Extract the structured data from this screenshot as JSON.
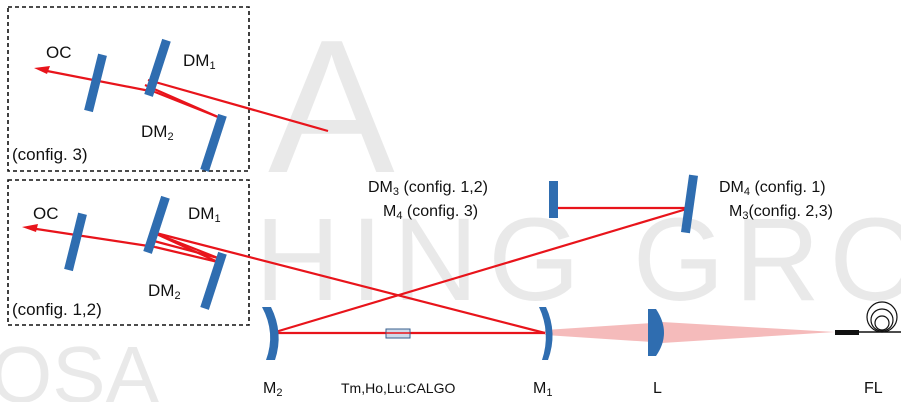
{
  "watermark": {
    "left_fragment": "A",
    "middle_text": "HING GRO",
    "bottom_left": "OSA"
  },
  "colors": {
    "beam": "#e8141b",
    "optic": "#2f6db0",
    "box_border": "#111111",
    "pump_cone": "#f4b4b4"
  },
  "insets": {
    "top": {
      "label_oc": "OC",
      "label_dm1": "DM",
      "label_dm1_sub": "1",
      "label_dm2": "DM",
      "label_dm2_sub": "2",
      "label_config": "(config. 3)"
    },
    "bottom": {
      "label_oc": "OC",
      "label_dm1": "DM",
      "label_dm1_sub": "1",
      "label_dm2": "DM",
      "label_dm2_sub": "2",
      "label_config": "(config. 1,2)"
    }
  },
  "cavity": {
    "dm3": {
      "name": "DM",
      "sub": "3",
      "note": " (config. 1,2)"
    },
    "m4": {
      "name": "M",
      "sub": "4",
      "note": " (config. 3)"
    },
    "dm4": {
      "name": "DM",
      "sub": "4",
      "note": " (config. 1)"
    },
    "m3": {
      "name": "M",
      "sub": "3",
      "note": "(config. 2,3)"
    }
  },
  "bottom_labels": {
    "m2": {
      "name": "M",
      "sub": "2"
    },
    "crystal": "Tm,Ho,Lu:CALGO",
    "m1": {
      "name": "M",
      "sub": "1"
    },
    "lens": "L",
    "fiber": "FL"
  },
  "icons": {
    "fiber_coil": "fiber-coil-icon"
  }
}
